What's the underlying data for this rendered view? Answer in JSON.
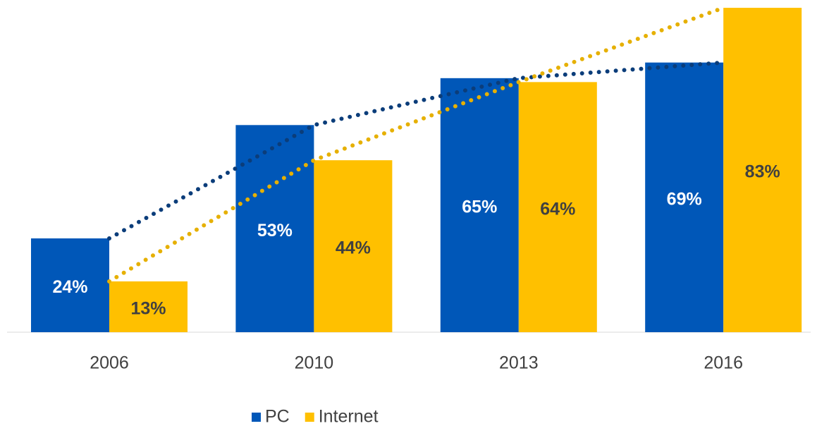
{
  "chart_data": {
    "type": "bar",
    "categories": [
      "2006",
      "2010",
      "2013",
      "2016"
    ],
    "series": [
      {
        "name": "PC",
        "color": "#0057b8",
        "trend_color": "#0b3d7a",
        "label_color": "#ffffff",
        "values": [
          24,
          53,
          65,
          69
        ],
        "value_labels": [
          "24%",
          "53%",
          "65%",
          "69%"
        ]
      },
      {
        "name": "Internet",
        "color": "#ffc000",
        "trend_color": "#e6b000",
        "label_color": "#404040",
        "values": [
          13,
          44,
          64,
          83
        ],
        "value_labels": [
          "13%",
          "44%",
          "64%",
          "83%"
        ]
      }
    ],
    "ylim": [
      0,
      85
    ],
    "legend": "bottom"
  }
}
